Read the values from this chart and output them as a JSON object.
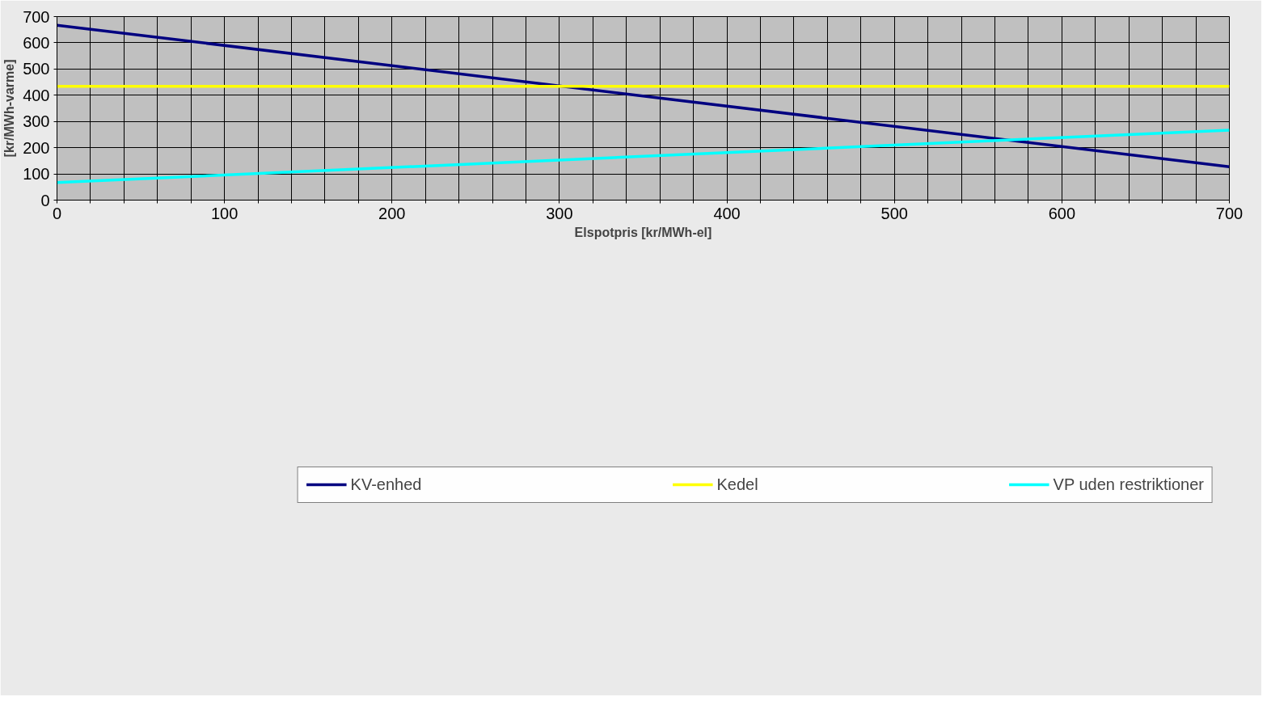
{
  "chart_data": {
    "type": "line",
    "xlabel": "Elspotpris [kr/MWh-el]",
    "ylabel": "[kr/MWh-varme]",
    "x": [
      0,
      700
    ],
    "series": [
      {
        "name": "KV-enhed",
        "color": "#000080",
        "values": [
          667,
          127
        ]
      },
      {
        "name": "Kedel",
        "color": "#ffff00",
        "values": [
          434,
          434
        ]
      },
      {
        "name": "VP uden restriktioner",
        "color": "#00ffff",
        "values": [
          67,
          267
        ]
      }
    ],
    "xlim": [
      0,
      700
    ],
    "ylim": [
      0,
      700
    ],
    "xticks": [
      0,
      {
        "value": 20,
        "label": null
      },
      {
        "value": 40,
        "label": null
      },
      {
        "value": 60,
        "label": null
      },
      {
        "value": 80,
        "label": null
      },
      100,
      {
        "value": 120,
        "label": null
      },
      {
        "value": 140,
        "label": null
      },
      {
        "value": 160,
        "label": null
      },
      {
        "value": 180,
        "label": null
      },
      200,
      {
        "value": 220,
        "label": null
      },
      {
        "value": 240,
        "label": null
      },
      {
        "value": 260,
        "label": null
      },
      {
        "value": 280,
        "label": null
      },
      300,
      {
        "value": 320,
        "label": null
      },
      {
        "value": 340,
        "label": null
      },
      {
        "value": 360,
        "label": null
      },
      {
        "value": 380,
        "label": null
      },
      400,
      {
        "value": 420,
        "label": null
      },
      {
        "value": 440,
        "label": null
      },
      {
        "value": 460,
        "label": null
      },
      {
        "value": 480,
        "label": null
      },
      500,
      {
        "value": 520,
        "label": null
      },
      {
        "value": 540,
        "label": null
      },
      {
        "value": 560,
        "label": null
      },
      {
        "value": 580,
        "label": null
      },
      600,
      {
        "value": 620,
        "label": null
      },
      {
        "value": 640,
        "label": null
      },
      {
        "value": 660,
        "label": null
      },
      {
        "value": 680,
        "label": null
      },
      700
    ],
    "yticks": [
      0,
      100,
      200,
      300,
      400,
      500,
      600,
      700
    ],
    "grid": true,
    "legend": "bottom",
    "marker": "none",
    "line_style": "solid"
  }
}
